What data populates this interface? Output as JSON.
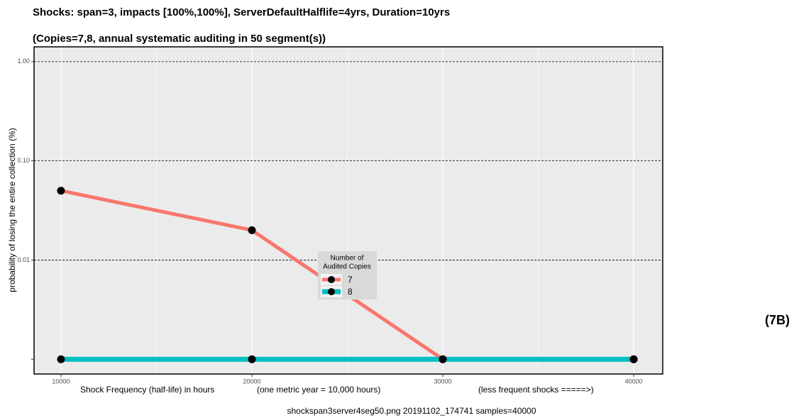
{
  "chart_data": {
    "type": "line",
    "title": "Shocks: span=3, impacts [100%,100%], ServerDefaultHalflife=4yrs, Duration=10yrs",
    "subtitle": "(Copies=7,8, annual systematic auditing in 50 segment(s))",
    "x_label_parts": [
      "Shock Frequency (half-life) in hours",
      "(one metric year = 10,000 hours)",
      "(less frequent shocks =====>)"
    ],
    "y_label": "probability of losing the entire collection (%)",
    "caption": "shockspan3server4seg50.png   20191102_174741   samples=40000",
    "figure_label": "(7B)",
    "x": [
      10000,
      20000,
      30000,
      40000
    ],
    "series": [
      {
        "name": "7",
        "color": "#f8766d",
        "values": [
          0.05,
          0.02,
          0.001,
          0.001
        ]
      },
      {
        "name": "8",
        "color": "#00bfc4",
        "values": [
          0.001,
          0.001,
          0.001,
          0.001
        ]
      }
    ],
    "legend_title": [
      "Number of",
      "Audited Copies"
    ],
    "xlim": [
      8590,
      41520
    ],
    "xticks": [
      10000,
      20000,
      30000,
      40000
    ],
    "ylim": [
      0.00071,
      1.41
    ],
    "yticks": [
      {
        "value": 1,
        "label": "1.00"
      },
      {
        "value": 0.1,
        "label": "0.10"
      },
      0.01,
      {
        "value": 0.001,
        "label": null
      }
    ],
    "log_y": true,
    "grid": true
  }
}
